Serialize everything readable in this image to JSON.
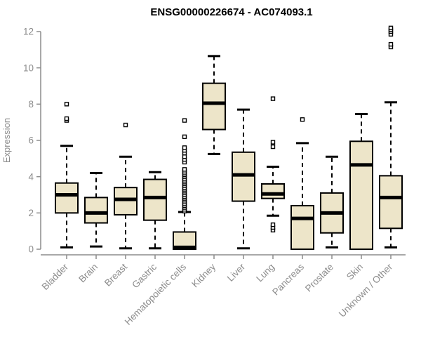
{
  "title": "ENSG00000226674 - AC074093.1",
  "chart_data": {
    "type": "boxplot",
    "title": "ENSG00000226674 - AC074093.1",
    "xlabel": "",
    "ylabel": "Expression",
    "ylim": [
      0,
      12
    ],
    "yticks": [
      0,
      2,
      4,
      6,
      8,
      10,
      12
    ],
    "grid": false,
    "legend": "none",
    "categories": [
      "Bladder",
      "Brain",
      "Breast",
      "Gastric",
      "Hematopoietic cells",
      "Kidney",
      "Liver",
      "Lung",
      "Pancreas",
      "Prostate",
      "Skin",
      "Unknown / Other"
    ],
    "series": [
      {
        "label": "Bladder",
        "low": 0.1,
        "q1": 2.0,
        "median": 3.0,
        "q3": 3.65,
        "high": 5.7,
        "outliers": [
          7.1,
          7.2,
          8.0
        ]
      },
      {
        "label": "Brain",
        "low": 0.15,
        "q1": 1.45,
        "median": 2.0,
        "q3": 2.85,
        "high": 4.2,
        "outliers": []
      },
      {
        "label": "Breast",
        "low": 0.05,
        "q1": 1.9,
        "median": 2.75,
        "q3": 3.4,
        "high": 5.1,
        "outliers": [
          6.85
        ]
      },
      {
        "label": "Gastric",
        "low": 0.05,
        "q1": 1.6,
        "median": 2.85,
        "q3": 3.85,
        "high": 4.25,
        "outliers": []
      },
      {
        "label": "Hematopoietic cells",
        "low": 0,
        "q1": 0,
        "median": 0.1,
        "q3": 0.95,
        "high": 2.05,
        "outliers": [
          2.1,
          2.2,
          2.3,
          2.4,
          2.5,
          2.6,
          2.7,
          2.8,
          2.9,
          3.0,
          3.1,
          3.2,
          3.3,
          3.4,
          3.5,
          3.6,
          3.7,
          3.8,
          3.9,
          4.0,
          4.1,
          4.2,
          4.3,
          4.4,
          4.8,
          4.95,
          5.1,
          5.3,
          5.45,
          5.6,
          6.2,
          7.1
        ]
      },
      {
        "label": "Kidney",
        "low": 5.25,
        "q1": 6.6,
        "median": 8.05,
        "q3": 9.15,
        "high": 10.65,
        "outliers": []
      },
      {
        "label": "Liver",
        "low": 0.05,
        "q1": 2.65,
        "median": 4.1,
        "q3": 5.35,
        "high": 7.7,
        "outliers": []
      },
      {
        "label": "Lung",
        "low": 1.85,
        "q1": 2.8,
        "median": 3.05,
        "q3": 3.6,
        "high": 4.55,
        "outliers": [
          1.05,
          1.2,
          1.35,
          5.65,
          5.9,
          8.3
        ]
      },
      {
        "label": "Pancreas",
        "low": 0,
        "q1": 0,
        "median": 1.7,
        "q3": 2.4,
        "high": 5.85,
        "outliers": [
          7.15
        ]
      },
      {
        "label": "Prostate",
        "low": 0.1,
        "q1": 0.9,
        "median": 2.0,
        "q3": 3.1,
        "high": 5.1,
        "outliers": []
      },
      {
        "label": "Skin",
        "low": 0,
        "q1": 0,
        "median": 4.65,
        "q3": 5.95,
        "high": 7.45,
        "outliers": []
      },
      {
        "label": "Unknown / Other",
        "low": 0.1,
        "q1": 1.15,
        "median": 2.85,
        "q3": 4.05,
        "high": 8.1,
        "outliers": [
          11.15,
          11.3,
          11.85,
          12.0,
          12.1,
          12.2
        ]
      }
    ],
    "colors": {
      "box_fill": "#ede5c9",
      "box_border": "#000000",
      "median": "#000000",
      "whisker": "#000000",
      "outlier_stroke": "#000000",
      "outlier_fill": "#ffffff",
      "axis": "#8c8c8c",
      "tick_label": "#8c8c8c",
      "axis_label": "#8c8c8c",
      "title": "#000000",
      "background": "#ffffff"
    }
  }
}
